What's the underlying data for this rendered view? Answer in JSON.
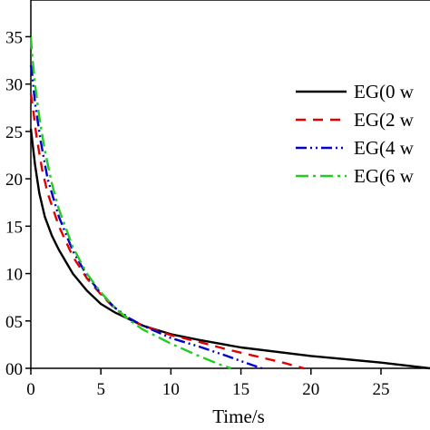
{
  "chart_data": {
    "type": "line",
    "xlabel": "Time/s",
    "ylabel": "",
    "xlim": [
      0,
      28.5
    ],
    "ylim": [
      0,
      0.36
    ],
    "x_ticks": [
      0,
      5,
      10,
      15,
      20,
      25
    ],
    "x_tick_labels": [
      "0",
      "5",
      "10",
      "15",
      "20",
      "25"
    ],
    "y_ticks": [
      0,
      0.05,
      0.1,
      0.15,
      0.2,
      0.25,
      0.3,
      0.35
    ],
    "y_tick_labels": [
      "00",
      "05",
      "10",
      "15",
      "20",
      "25",
      "30",
      "35"
    ],
    "legend_position": "top-right",
    "series": [
      {
        "name": "EG(0 w",
        "color": "#000000",
        "dash": "solid",
        "x": [
          0,
          0.3,
          0.6,
          1,
          1.5,
          2,
          3,
          4,
          5,
          6,
          7,
          8,
          10,
          12,
          15,
          20,
          25,
          28.5
        ],
        "y": [
          0.253,
          0.215,
          0.185,
          0.16,
          0.14,
          0.125,
          0.1,
          0.082,
          0.068,
          0.059,
          0.052,
          0.045,
          0.036,
          0.03,
          0.022,
          0.013,
          0.006,
          0.0
        ]
      },
      {
        "name": "EG(2 w",
        "color": "#e00000",
        "dash": "11,8",
        "x": [
          0,
          0.15,
          0.4,
          0.8,
          1.2,
          2,
          3,
          4,
          5,
          6,
          7,
          8,
          10,
          12,
          14,
          16,
          18,
          19.5
        ],
        "y": [
          0.29,
          0.275,
          0.245,
          0.21,
          0.185,
          0.15,
          0.118,
          0.095,
          0.078,
          0.063,
          0.052,
          0.045,
          0.035,
          0.028,
          0.02,
          0.013,
          0.006,
          0.0
        ]
      },
      {
        "name": "EG(4 w",
        "color": "#0000cc",
        "dash": "12,4,2,4,2,4",
        "x": [
          0,
          0.1,
          0.3,
          0.7,
          1.2,
          2,
          3,
          4,
          5,
          6,
          7,
          8,
          10,
          12,
          14,
          15.5,
          16.5
        ],
        "y": [
          0.32,
          0.31,
          0.28,
          0.24,
          0.2,
          0.16,
          0.124,
          0.098,
          0.079,
          0.064,
          0.053,
          0.045,
          0.032,
          0.023,
          0.013,
          0.005,
          0.0
        ]
      },
      {
        "name": "EG(6 w",
        "color": "#22cc22",
        "dash": "14,5,3,5",
        "x": [
          0,
          0.1,
          0.3,
          0.6,
          1,
          1.5,
          2,
          3,
          4,
          5,
          6,
          7,
          8,
          10,
          12,
          13.5,
          14.3
        ],
        "y": [
          0.35,
          0.33,
          0.3,
          0.265,
          0.23,
          0.195,
          0.168,
          0.128,
          0.1,
          0.08,
          0.064,
          0.051,
          0.041,
          0.026,
          0.013,
          0.004,
          0.0
        ]
      }
    ]
  }
}
